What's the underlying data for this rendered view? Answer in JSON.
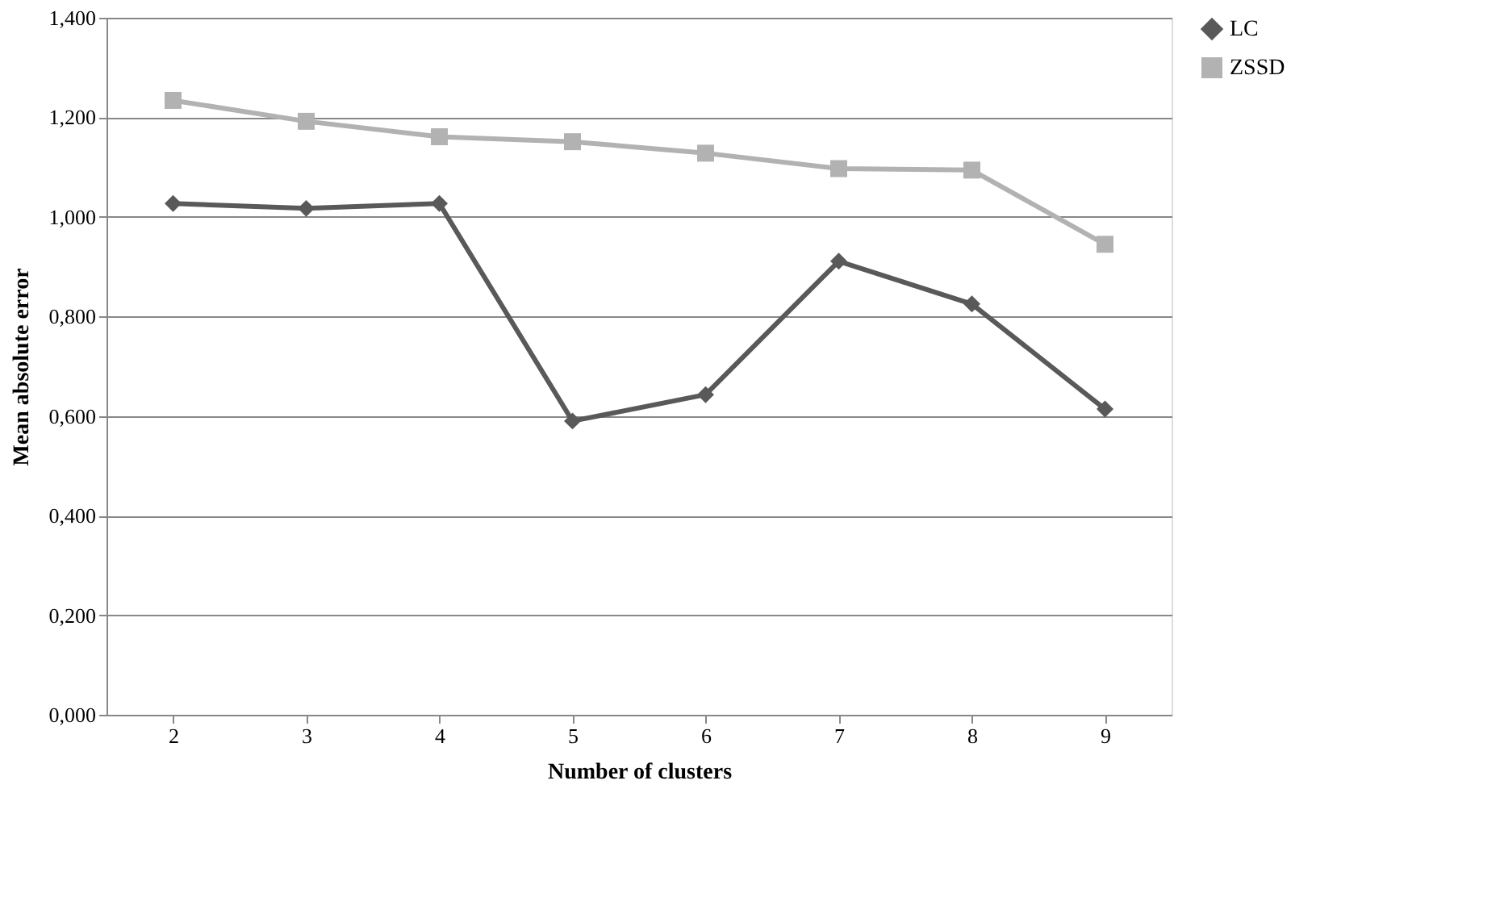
{
  "chart_data": {
    "type": "line",
    "xlabel": "Number  of clusters",
    "ylabel": "Mean absolute error",
    "categories": [
      "2",
      "3",
      "4",
      "5",
      "6",
      "7",
      "8",
      "9"
    ],
    "series": [
      {
        "name": "LC",
        "color": "#595959",
        "marker": "diamond",
        "values": [
          1.027,
          1.017,
          1.027,
          0.59,
          0.643,
          0.911,
          0.825,
          0.614
        ]
      },
      {
        "name": "ZSSD",
        "color": "#b2b2b2",
        "marker": "square",
        "values": [
          1.234,
          1.192,
          1.161,
          1.151,
          1.128,
          1.097,
          1.094,
          0.945
        ]
      }
    ],
    "ylim": [
      0,
      1.4
    ],
    "yticks": [
      {
        "value": 0,
        "label": "0,000"
      },
      {
        "value": 0.2,
        "label": "0,200"
      },
      {
        "value": 0.4,
        "label": "0,400"
      },
      {
        "value": 0.6,
        "label": "0,600"
      },
      {
        "value": 0.8,
        "label": "0,800"
      },
      {
        "value": 1.0,
        "label": "1,000"
      },
      {
        "value": 1.2,
        "label": "1,200"
      },
      {
        "value": 1.4,
        "label": "1,400"
      }
    ],
    "grid": "y",
    "legend": "right"
  }
}
